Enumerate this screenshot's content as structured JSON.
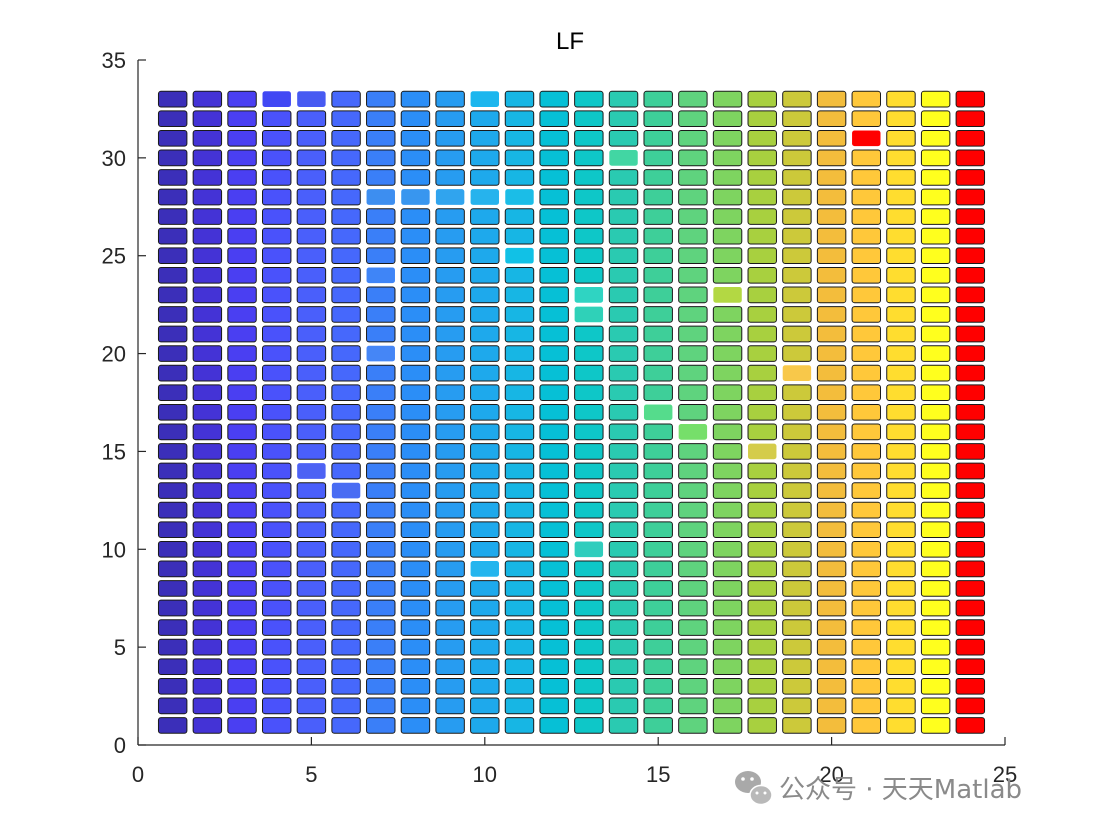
{
  "chart_data": {
    "type": "heatmap",
    "title": "LF",
    "xlabel": "",
    "ylabel": "",
    "xlim": [
      0,
      25
    ],
    "ylim": [
      0,
      35
    ],
    "xticks": [
      0,
      5,
      10,
      15,
      20,
      25
    ],
    "yticks": [
      0,
      5,
      10,
      15,
      20,
      25,
      30,
      35
    ],
    "grid": false,
    "columns": 24,
    "rows": 33,
    "column_colors": [
      "#3b2fb9",
      "#4433d6",
      "#4a3ff2",
      "#4a52fb",
      "#4a5ffb",
      "#4668fc",
      "#3a7ff8",
      "#2b8ef7",
      "#279cf1",
      "#1ea9ec",
      "#17b6e4",
      "#06c0d6",
      "#0ec7c8",
      "#2acab1",
      "#3ecf99",
      "#5fd37e",
      "#7ed460",
      "#a8d03f",
      "#ccc93a",
      "#f3bd3c",
      "#ffc83a",
      "#ffdd2f",
      "#ffff1e",
      "#ff0000"
    ],
    "highlights": [
      {
        "column": 4,
        "rows": [
          33
        ],
        "color": "#4148f4"
      },
      {
        "column": 5,
        "rows": [
          33
        ],
        "color": "#475af2"
      },
      {
        "column": 10,
        "rows": [
          33
        ],
        "color": "#1cb6ee"
      },
      {
        "column": 21,
        "rows": [
          31
        ],
        "color": "#ff0000"
      },
      {
        "column": 14,
        "rows": [
          30
        ],
        "color": "#42d6a3"
      },
      {
        "column": 7,
        "rows": [
          28
        ],
        "color": "#3d8ef0"
      },
      {
        "column": 8,
        "rows": [
          28
        ],
        "color": "#3896ef"
      },
      {
        "column": 9,
        "rows": [
          28
        ],
        "color": "#30a4ee"
      },
      {
        "column": 10,
        "rows": [
          28
        ],
        "color": "#26b3ed"
      },
      {
        "column": 11,
        "rows": [
          28
        ],
        "color": "#1bbde7"
      },
      {
        "column": 11,
        "rows": [
          25
        ],
        "color": "#11c1e6"
      },
      {
        "column": 7,
        "rows": [
          24
        ],
        "color": "#3f85f7"
      },
      {
        "column": 17,
        "rows": [
          23
        ],
        "color": "#b3d843"
      },
      {
        "column": 13,
        "rows": [
          23
        ],
        "color": "#2fd4c2"
      },
      {
        "column": 13,
        "rows": [
          22
        ],
        "color": "#2fd1b8"
      },
      {
        "column": 7,
        "rows": [
          20
        ],
        "color": "#4586f6"
      },
      {
        "column": 19,
        "rows": [
          19
        ],
        "color": "#f8c84a"
      },
      {
        "column": 15,
        "rows": [
          17
        ],
        "color": "#55dc8c"
      },
      {
        "column": 16,
        "rows": [
          16
        ],
        "color": "#76df6a"
      },
      {
        "column": 18,
        "rows": [
          15
        ],
        "color": "#d4cc4a"
      },
      {
        "column": 5,
        "rows": [
          14
        ],
        "color": "#4d62f4"
      },
      {
        "column": 6,
        "rows": [
          13
        ],
        "color": "#496cf3"
      },
      {
        "column": 13,
        "rows": [
          10
        ],
        "color": "#2fcdbd"
      },
      {
        "column": 10,
        "rows": [
          9
        ],
        "color": "#24b5ee"
      }
    ]
  },
  "watermark": {
    "text": "公众号 · 天天Matlab",
    "icon": "wechat-icon"
  }
}
